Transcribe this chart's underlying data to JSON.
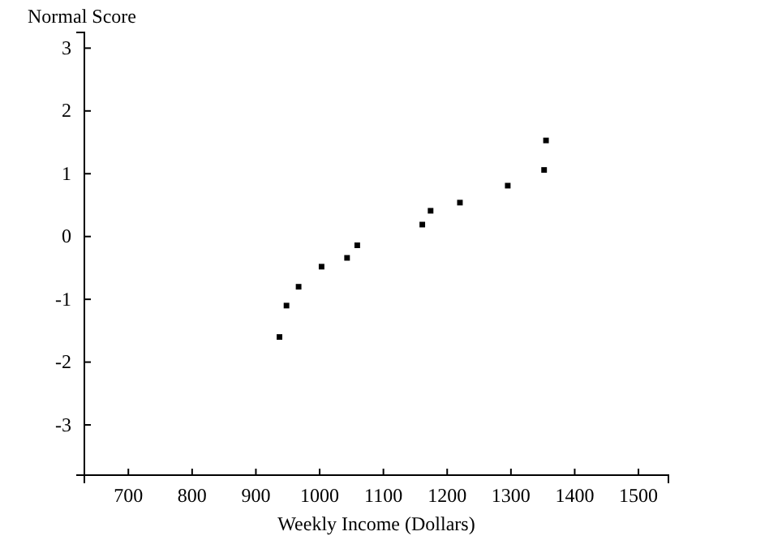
{
  "chart_data": {
    "type": "scatter",
    "xlabel": "Weekly Income (Dollars)",
    "ylabel": "Normal Score",
    "x": [
      937,
      948,
      967,
      1003,
      1043,
      1059,
      1161,
      1174,
      1220,
      1295,
      1352,
      1355
    ],
    "values": [
      -1.6,
      -1.1,
      -0.8,
      -0.48,
      -0.34,
      -0.14,
      0.19,
      0.41,
      0.54,
      0.81,
      1.06,
      1.53
    ],
    "color": "#000000",
    "marker": "square",
    "xlim": [
      631,
      1547
    ],
    "xticks": [
      700,
      800,
      900,
      1000,
      1100,
      1200,
      1300,
      1400,
      1500
    ],
    "ylim": [
      -3.8,
      3.25
    ],
    "yticks": [
      -3,
      -2,
      -1,
      0,
      1,
      2,
      3
    ],
    "grid": false
  }
}
